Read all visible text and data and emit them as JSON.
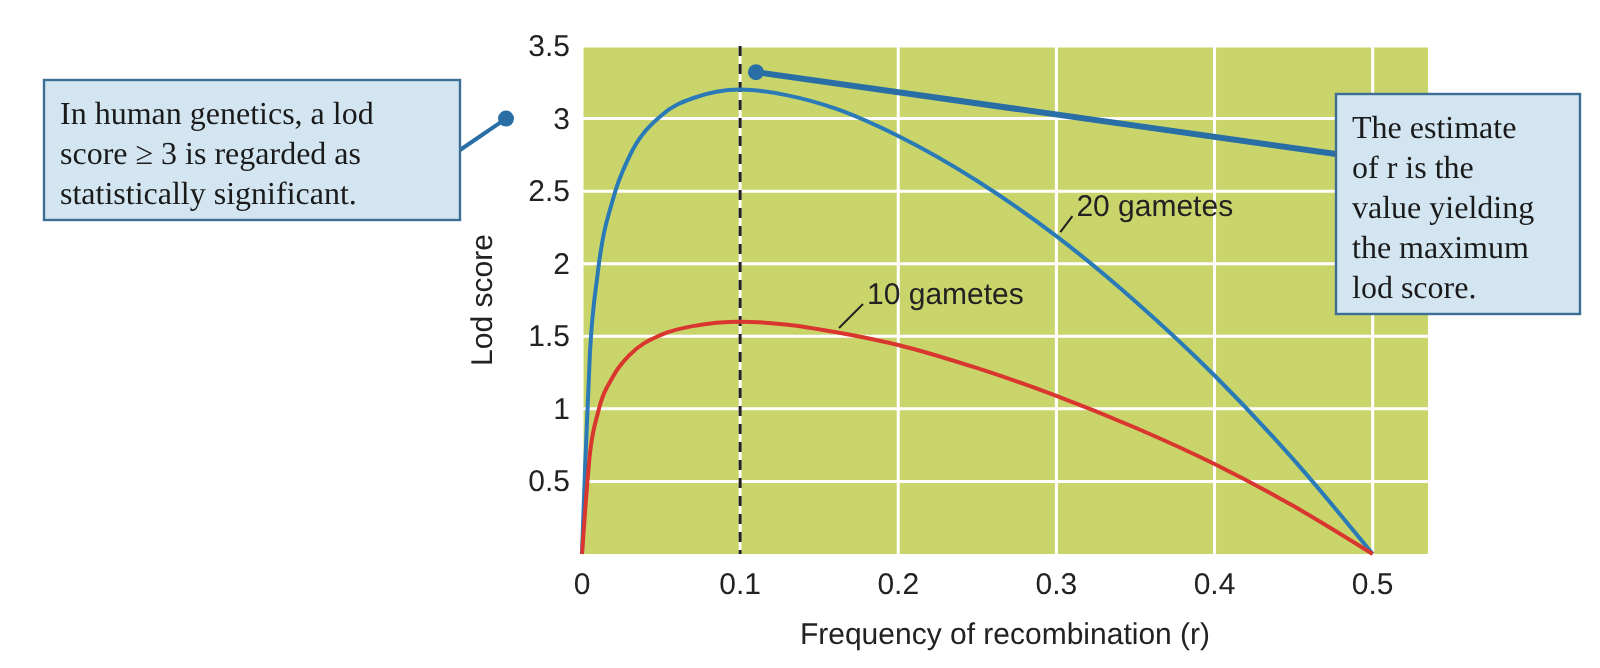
{
  "chart_data": {
    "type": "line",
    "xlabel": "Frequency of recombination (r)",
    "ylabel": "Lod score",
    "x": [
      0,
      0.002,
      0.005,
      0.01,
      0.02,
      0.03,
      0.05,
      0.07,
      0.1,
      0.13,
      0.16,
      0.2,
      0.25,
      0.3,
      0.35,
      0.4,
      0.45,
      0.5
    ],
    "series": [
      {
        "name": "20 gametes",
        "color": "#2a7ab8",
        "values": [
          0,
          0.61,
          1.38,
          1.94,
          2.46,
          2.74,
          3.02,
          3.14,
          3.2,
          3.16,
          3.07,
          2.88,
          2.57,
          2.19,
          1.74,
          1.23,
          0.65,
          0
        ]
      },
      {
        "name": "10 gametes",
        "color": "#d8362f",
        "values": [
          0,
          0.3,
          0.69,
          0.97,
          1.23,
          1.37,
          1.51,
          1.57,
          1.6,
          1.58,
          1.53,
          1.44,
          1.28,
          1.09,
          0.87,
          0.62,
          0.33,
          0
        ]
      }
    ],
    "xlim": [
      0,
      0.535
    ],
    "ylim": [
      0,
      3.5
    ],
    "xticks": [
      0,
      0.1,
      0.2,
      0.3,
      0.4,
      0.5
    ],
    "yticks": [
      0.5,
      1.0,
      1.5,
      2.0,
      2.5,
      3.0,
      3.5
    ],
    "ref_lines": [
      {
        "axis": "x",
        "value": 0.1,
        "line_style": "dashed",
        "color": "#222222"
      }
    ],
    "annotations": [
      "In human genetics, a lod score ≥ 3 is regarded as statistically significant.",
      {
        "text": "The estimate of r is the value yielding the maximum lod score.",
        "x": 0.11,
        "y": 3.32
      }
    ],
    "grid": true,
    "marker": "none",
    "line_style": "solid"
  }
}
